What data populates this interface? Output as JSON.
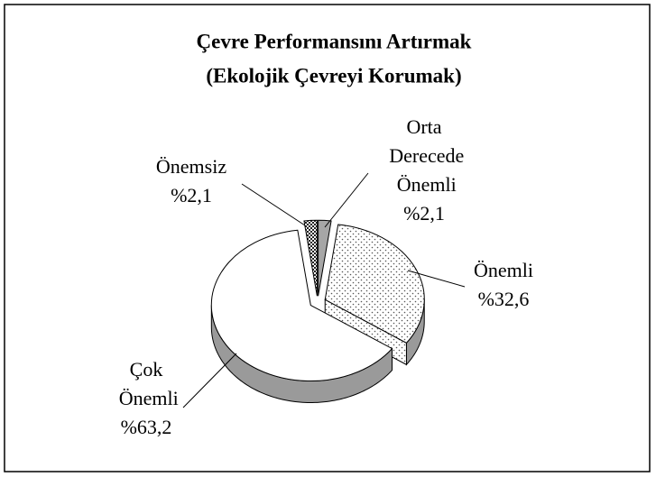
{
  "chart_data": {
    "type": "pie",
    "title": [
      "Çevre Performansını Artırmak",
      "(Ekolojik Çevreyi Korumak)"
    ],
    "categories": [
      "Orta Derecede Önemli",
      "Önemli",
      "Çok Önemli",
      "Önemsiz"
    ],
    "values": [
      2.1,
      32.6,
      63.2,
      2.1
    ],
    "value_labels": [
      "%2,1",
      "%32,6",
      "%63,2",
      "%2,1"
    ],
    "colors": [
      "#a6a6a6",
      "url(#dots)",
      "#ffffff",
      "url(#checks)"
    ],
    "three_d": true,
    "exploded": true
  }
}
